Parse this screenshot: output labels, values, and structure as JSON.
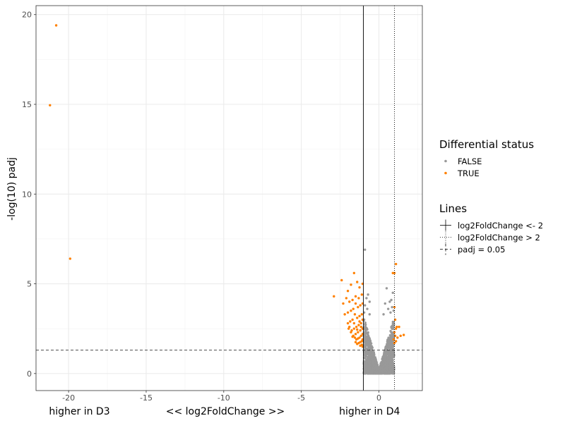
{
  "chart_data": {
    "type": "scatter",
    "xlabel": "<< log2FoldChange >>",
    "ylabel": "-log(10) padj",
    "xlim": [
      -22.1,
      2.8
    ],
    "ylim": [
      -0.95,
      20.5
    ],
    "x_ticks": [
      -20,
      -15,
      -10,
      -5,
      0
    ],
    "y_ticks": [
      0,
      5,
      10,
      15,
      20
    ],
    "x_annotations": [
      {
        "text": "higher in D3",
        "x": -19.3
      },
      {
        "text": "<< log2FoldChange >>",
        "x": -9.9
      },
      {
        "text": "higher in D4",
        "x": -0.6
      }
    ],
    "grid": true,
    "reference_lines": [
      {
        "orientation": "vertical",
        "value": -1,
        "style": "solid",
        "label": "log2FoldChange <- 2"
      },
      {
        "orientation": "vertical",
        "value": 1,
        "style": "dotted",
        "label": "log2FoldChange > 2"
      },
      {
        "orientation": "horizontal",
        "value": 1.3,
        "style": "dashed",
        "label": "padj = 0.05"
      }
    ],
    "legend": {
      "placement": "right",
      "color_title": "Differential status",
      "color_entries": [
        {
          "label": "FALSE",
          "color": "#999999"
        },
        {
          "label": "TRUE",
          "color": "#ff8000"
        }
      ],
      "lines_title": "Lines",
      "line_entries": [
        {
          "label": "log2FoldChange <- 2",
          "style": "solid"
        },
        {
          "label": "log2FoldChange > 2",
          "style": "dotted"
        },
        {
          "label": "padj = 0.05",
          "style": "dashed"
        }
      ]
    },
    "series": [
      {
        "name": "TRUE",
        "color": "#ff8000",
        "points": [
          [
            -20.8,
            19.4
          ],
          [
            -21.2,
            14.95
          ],
          [
            -19.9,
            6.4
          ],
          [
            1.1,
            6.1
          ],
          [
            1.0,
            5.6
          ],
          [
            0.9,
            5.6
          ],
          [
            -1.05,
            5.0
          ],
          [
            -1.25,
            4.8
          ],
          [
            -1.4,
            5.1
          ],
          [
            -1.6,
            5.6
          ],
          [
            -1.8,
            4.95
          ],
          [
            -2.0,
            4.6
          ],
          [
            -2.4,
            5.2
          ],
          [
            -2.9,
            4.3
          ],
          [
            -1.1,
            4.4
          ],
          [
            -1.3,
            4.2
          ],
          [
            -1.5,
            4.3
          ],
          [
            -1.7,
            4.1
          ],
          [
            -1.9,
            4.0
          ],
          [
            -2.1,
            4.2
          ],
          [
            -2.3,
            3.9
          ],
          [
            -1.05,
            3.9
          ],
          [
            -1.2,
            3.8
          ],
          [
            -1.35,
            3.7
          ],
          [
            -1.5,
            3.9
          ],
          [
            -1.65,
            3.6
          ],
          [
            -1.8,
            3.5
          ],
          [
            -2.0,
            3.4
          ],
          [
            -2.2,
            3.3
          ],
          [
            -1.1,
            3.3
          ],
          [
            -1.25,
            3.2
          ],
          [
            -1.4,
            3.1
          ],
          [
            -1.55,
            3.3
          ],
          [
            -1.7,
            3.0
          ],
          [
            -1.85,
            2.9
          ],
          [
            -2.0,
            2.8
          ],
          [
            -1.05,
            3.0
          ],
          [
            -1.15,
            2.8
          ],
          [
            -1.3,
            2.7
          ],
          [
            -1.45,
            2.6
          ],
          [
            -1.6,
            2.5
          ],
          [
            -1.75,
            2.4
          ],
          [
            -1.9,
            2.6
          ],
          [
            -1.05,
            2.5
          ],
          [
            -1.2,
            2.4
          ],
          [
            -1.35,
            2.3
          ],
          [
            -1.5,
            2.2
          ],
          [
            -1.65,
            2.1
          ],
          [
            -1.8,
            2.3
          ],
          [
            -1.95,
            2.5
          ],
          [
            -1.05,
            2.2
          ],
          [
            -1.15,
            2.1
          ],
          [
            -1.25,
            2.0
          ],
          [
            -1.35,
            1.95
          ],
          [
            -1.45,
            1.9
          ],
          [
            -1.55,
            2.0
          ],
          [
            -1.7,
            2.05
          ],
          [
            -1.05,
            1.9
          ],
          [
            -1.1,
            1.8
          ],
          [
            -1.2,
            1.75
          ],
          [
            -1.3,
            1.7
          ],
          [
            -1.4,
            1.65
          ],
          [
            -1.5,
            1.75
          ],
          [
            -1.1,
            1.6
          ],
          [
            -1.2,
            1.55
          ],
          [
            -1.05,
            1.5
          ],
          [
            -1.15,
            2.6
          ],
          [
            -1.25,
            2.9
          ],
          [
            -1.6,
            2.8
          ],
          [
            -1.4,
            2.45
          ],
          [
            1.0,
            3.7
          ],
          [
            1.05,
            3.0
          ],
          [
            1.1,
            2.5
          ],
          [
            1.0,
            2.3
          ],
          [
            1.15,
            2.6
          ],
          [
            1.3,
            2.6
          ],
          [
            0.95,
            1.9
          ],
          [
            1.05,
            2.1
          ],
          [
            1.2,
            2.0
          ],
          [
            1.4,
            2.1
          ],
          [
            1.6,
            2.15
          ],
          [
            1.0,
            1.7
          ],
          [
            1.1,
            1.8
          ]
        ]
      },
      {
        "name": "FALSE",
        "color": "#999999",
        "points": [
          [
            -0.9,
            6.9
          ],
          [
            0.5,
            4.75
          ],
          [
            -0.7,
            4.4
          ],
          [
            0.9,
            4.5
          ],
          [
            -0.8,
            4.2
          ],
          [
            -0.6,
            4.0
          ],
          [
            0.7,
            4.0
          ],
          [
            0.8,
            4.1
          ],
          [
            0.4,
            3.9
          ],
          [
            -0.9,
            3.8
          ],
          [
            -0.75,
            3.6
          ],
          [
            0.6,
            3.6
          ],
          [
            0.85,
            3.7
          ],
          [
            -0.95,
            3.4
          ],
          [
            -0.6,
            3.3
          ],
          [
            0.3,
            3.3
          ],
          [
            0.75,
            3.4
          ],
          [
            0.95,
            3.5
          ]
        ]
      }
    ]
  }
}
